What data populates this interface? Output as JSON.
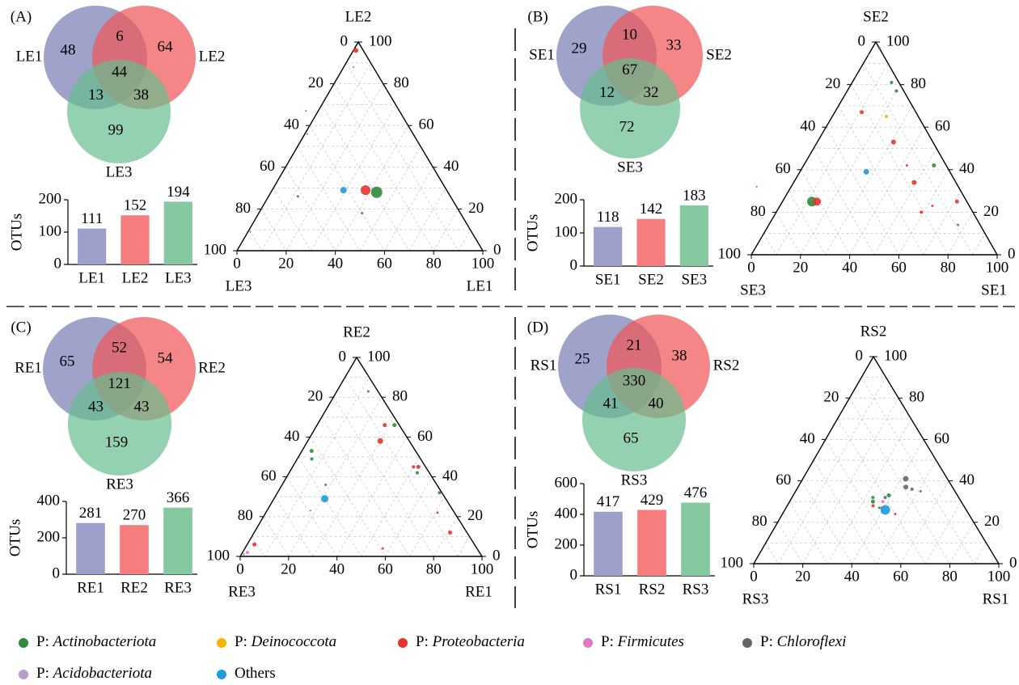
{
  "colors": {
    "set1": "#8e92c0",
    "set2": "#f0575a",
    "set3": "#66be8e",
    "bar1": "#9da0cb",
    "bar2": "#f57d7d",
    "bar3": "#86c9a0",
    "grid": "#c9c9c9",
    "separator": "#000000"
  },
  "legend": [
    {
      "prefix": "P: ",
      "name": "Actinobacteriota",
      "italic": true,
      "color": "#2e8b3a"
    },
    {
      "prefix": "P: ",
      "name": "Deinococcota",
      "italic": true,
      "color": "#f5b400"
    },
    {
      "prefix": "P: ",
      "name": "Proteobacteria",
      "italic": true,
      "color": "#e8332b"
    },
    {
      "prefix": "P: ",
      "name": "Firmicutes",
      "italic": true,
      "color": "#e377c2"
    },
    {
      "prefix": "P: ",
      "name": "Chloroflexi",
      "italic": true,
      "color": "#666666"
    },
    {
      "prefix": "P: ",
      "name": "Acidobacteriota",
      "italic": true,
      "color": "#b99ac8"
    },
    {
      "prefix": "",
      "name": "Others",
      "italic": false,
      "color": "#1e9be0"
    }
  ],
  "chart_data": [
    {
      "panel": "(A)",
      "venn": {
        "type": "venn",
        "sets": [
          "LE1",
          "LE2",
          "LE3"
        ],
        "only1": "48",
        "only2": "64",
        "only3": "99",
        "s12": "6",
        "s13": "13",
        "s23": "38",
        "s123": "44"
      },
      "bar": {
        "type": "bar",
        "ylabel": "OTUs",
        "categories": [
          "LE1",
          "LE2",
          "LE3"
        ],
        "values": [
          111,
          152,
          194
        ],
        "ylim": [
          0,
          200
        ],
        "yticks": [
          0,
          100,
          200
        ]
      },
      "ternary": {
        "type": "scatter",
        "axes": {
          "top": "LE2",
          "left": "LE3",
          "right": "LE1"
        },
        "ticks": [
          0,
          20,
          40,
          60,
          80,
          100
        ],
        "points": [
          {
            "a": 3,
            "b": 96,
            "c": 1,
            "color": "#e8332b",
            "r": 3
          },
          {
            "a": 8,
            "b": 88,
            "c": 4,
            "color": "#e8332b",
            "r": 1
          },
          {
            "a": 29,
            "b": 28,
            "c": 43,
            "color": "#2e8b3a",
            "r": 7
          },
          {
            "a": 33,
            "b": 29,
            "c": 38,
            "color": "#e8332b",
            "r": 6
          },
          {
            "a": 42,
            "b": 29,
            "c": 29,
            "color": "#1e9be0",
            "r": 4
          },
          {
            "a": 62,
            "b": 26,
            "c": 12,
            "color": "#2e8b3a",
            "r": 1.5
          },
          {
            "a": 40,
            "b": 18,
            "c": 42,
            "color": "#e8332b",
            "r": 1.5
          },
          {
            "a": 38,
            "b": 67,
            "c": -5,
            "color": "#e8332b",
            "r": 1
          },
          {
            "a": 43,
            "b": 56,
            "c": 1,
            "color": "#e8332b",
            "r": 1
          },
          {
            "a": 90,
            "b": 9,
            "c": 1,
            "color": "#e8332b",
            "r": 1
          }
        ]
      }
    },
    {
      "panel": "(B)",
      "venn": {
        "type": "venn",
        "sets": [
          "SE1",
          "SE2",
          "SE3"
        ],
        "only1": "29",
        "only2": "33",
        "only3": "72",
        "s12": "10",
        "s13": "12",
        "s23": "32",
        "s123": "67"
      },
      "bar": {
        "type": "bar",
        "ylabel": "OTUs",
        "categories": [
          "SE1",
          "SE2",
          "SE3"
        ],
        "values": [
          118,
          142,
          183
        ],
        "ylim": [
          0,
          200
        ],
        "yticks": [
          0,
          100,
          200
        ]
      },
      "ternary": {
        "type": "scatter",
        "axes": {
          "top": "SE2",
          "left": "SE3",
          "right": "SE1"
        },
        "ticks": [
          0,
          20,
          40,
          60,
          80,
          100
        ],
        "points": [
          {
            "a": 0,
            "b": 97,
            "c": 3,
            "color": "#2e8b3a",
            "r": 1.5
          },
          {
            "a": 6,
            "b": 94,
            "c": 0,
            "color": "#e8332b",
            "r": 1
          },
          {
            "a": 3,
            "b": 81,
            "c": 16,
            "color": "#2e8b3a",
            "r": 2
          },
          {
            "a": 3,
            "b": 77,
            "c": 20,
            "color": "#2e8b3a",
            "r": 2
          },
          {
            "a": 22,
            "b": 67,
            "c": 11,
            "color": "#e8332b",
            "r": 2.5
          },
          {
            "a": 13,
            "b": 65,
            "c": 22,
            "color": "#f5b400",
            "r": 2
          },
          {
            "a": 16,
            "b": 53,
            "c": 31,
            "color": "#e8332b",
            "r": 3
          },
          {
            "a": 16,
            "b": 42,
            "c": 42,
            "color": "#e8332b",
            "r": 1.5
          },
          {
            "a": 5,
            "b": 42,
            "c": 53,
            "color": "#2e8b3a",
            "r": 2.5
          },
          {
            "a": 34,
            "b": 39,
            "c": 27,
            "color": "#1e9be0",
            "r": 3.5
          },
          {
            "a": 17,
            "b": 34,
            "c": 49,
            "color": "#e8332b",
            "r": 3
          },
          {
            "a": 4,
            "b": 25,
            "c": 71,
            "color": "#e8332b",
            "r": 2.5
          },
          {
            "a": 21,
            "b": 20,
            "c": 59,
            "color": "#e8332b",
            "r": 2
          },
          {
            "a": 15,
            "b": 23,
            "c": 62,
            "color": "#e8332b",
            "r": 1.5
          },
          {
            "a": 9,
            "b": 14,
            "c": 77,
            "color": "#2e8b3a",
            "r": 1.5
          },
          {
            "a": 63,
            "b": 25,
            "c": 12,
            "color": "#2e8b3a",
            "r": 6
          },
          {
            "a": 61,
            "b": 25,
            "c": 14,
            "color": "#e8332b",
            "r": 5
          },
          {
            "a": 82,
            "b": 32,
            "c": -14,
            "color": "#e8332b",
            "r": 1
          }
        ]
      }
    },
    {
      "panel": "(C)",
      "venn": {
        "type": "venn",
        "sets": [
          "RE1",
          "RE2",
          "RE3"
        ],
        "only1": "65",
        "only2": "54",
        "only3": "159",
        "s12": "52",
        "s13": "43",
        "s23": "43",
        "s123": "121"
      },
      "bar": {
        "type": "bar",
        "ylabel": "OTUs",
        "categories": [
          "RE1",
          "RE2",
          "RE3"
        ],
        "values": [
          281,
          270,
          366
        ],
        "ylim": [
          0,
          400
        ],
        "yticks": [
          0,
          200,
          400
        ]
      },
      "ternary": {
        "type": "scatter",
        "axes": {
          "top": "RE2",
          "left": "RE3",
          "right": "RE1"
        },
        "ticks": [
          0,
          20,
          40,
          60,
          80,
          100
        ],
        "points": [
          {
            "a": 4,
            "b": 83,
            "c": 13,
            "color": "#2e8b3a",
            "r": 1.5
          },
          {
            "a": 2,
            "b": 66,
            "c": 32,
            "color": "#2e8b3a",
            "r": 2.5
          },
          {
            "a": 6,
            "b": 66,
            "c": 28,
            "color": "#e8332b",
            "r": 2.5
          },
          {
            "a": 12,
            "b": 58,
            "c": 30,
            "color": "#e8332b",
            "r": 3.5
          },
          {
            "a": 3,
            "b": 45,
            "c": 52,
            "color": "#e8332b",
            "r": 2.5
          },
          {
            "a": 5,
            "b": 45,
            "c": 50,
            "color": "#e8332b",
            "r": 2
          },
          {
            "a": 5,
            "b": 42,
            "c": 53,
            "color": "#2e8b3a",
            "r": 2
          },
          {
            "a": 1,
            "b": 32,
            "c": 67,
            "color": "#2e8b3a",
            "r": 2
          },
          {
            "a": 7,
            "b": 22,
            "c": 71,
            "color": "#e8332b",
            "r": 1.5
          },
          {
            "a": 7,
            "b": 12,
            "c": 81,
            "color": "#e8332b",
            "r": 2.5
          },
          {
            "a": 43,
            "b": 53,
            "c": 4,
            "color": "#2e8b3a",
            "r": 2.5
          },
          {
            "a": 45,
            "b": 49,
            "c": 6,
            "color": "#2e8b3a",
            "r": 2
          },
          {
            "a": 46,
            "b": 36,
            "c": 18,
            "color": "#2e8b3a",
            "r": 1.5
          },
          {
            "a": 50,
            "b": 29,
            "c": 21,
            "color": "#1e9be0",
            "r": 4.5
          },
          {
            "a": 59,
            "b": 23,
            "c": 18,
            "color": "#2e8b3a",
            "r": 1
          },
          {
            "a": 39,
            "b": 4,
            "c": 57,
            "color": "#e8332b",
            "r": 1.5
          },
          {
            "a": 91,
            "b": 6,
            "c": 3,
            "color": "#e8332b",
            "r": 2.5
          },
          {
            "a": 96,
            "b": 2,
            "c": 2,
            "color": "#e377c2",
            "r": 2
          },
          {
            "a": 98,
            "b": 1,
            "c": 1,
            "color": "#b99ac8",
            "r": 1.5
          }
        ]
      }
    },
    {
      "panel": "(D)",
      "venn": {
        "type": "venn",
        "sets": [
          "RS1",
          "RS2",
          "RS3"
        ],
        "only1": "25",
        "only2": "38",
        "only3": "65",
        "s12": "21",
        "s13": "41",
        "s23": "40",
        "s123": "330"
      },
      "bar": {
        "type": "bar",
        "ylabel": "OTUs",
        "categories": [
          "RS1",
          "RS2",
          "RS3"
        ],
        "values": [
          417,
          429,
          476
        ],
        "ylim": [
          0,
          600
        ],
        "yticks": [
          0,
          200,
          400,
          600
        ]
      },
      "ternary": {
        "type": "scatter",
        "axes": {
          "top": "RS2",
          "left": "RS3",
          "right": "RS1"
        },
        "ticks": [
          0,
          20,
          40,
          60,
          80,
          100
        ],
        "points": [
          {
            "a": 17,
            "b": 41,
            "c": 42,
            "color": "#666666",
            "r": 3.5
          },
          {
            "a": 19,
            "b": 37,
            "c": 44,
            "color": "#666666",
            "r": 3
          },
          {
            "a": 17,
            "b": 36,
            "c": 47,
            "color": "#666666",
            "r": 2
          },
          {
            "a": 14,
            "b": 35,
            "c": 51,
            "color": "#666666",
            "r": 1.5
          },
          {
            "a": 28,
            "b": 33,
            "c": 39,
            "color": "#2e8b3a",
            "r": 2.5
          },
          {
            "a": 30,
            "b": 32,
            "c": 38,
            "color": "#666666",
            "r": 2
          },
          {
            "a": 32,
            "b": 30,
            "c": 38,
            "color": "#e377c2",
            "r": 2
          },
          {
            "a": 35,
            "b": 32,
            "c": 33,
            "color": "#2e8b3a",
            "r": 2
          },
          {
            "a": 36,
            "b": 30,
            "c": 34,
            "color": "#2e8b3a",
            "r": 2.5
          },
          {
            "a": 37,
            "b": 28,
            "c": 35,
            "color": "#e8332b",
            "r": 2
          },
          {
            "a": 34,
            "b": 27,
            "c": 39,
            "color": "#e8332b",
            "r": 1.5
          },
          {
            "a": 35,
            "b": 27,
            "c": 38,
            "color": "#2e8b3a",
            "r": 1.5
          },
          {
            "a": 34,
            "b": 26,
            "c": 40,
            "color": "#b99ac8",
            "r": 2
          },
          {
            "a": 33,
            "b": 26,
            "c": 41,
            "color": "#1e9be0",
            "r": 6
          },
          {
            "a": 30,
            "b": 24,
            "c": 46,
            "color": "#e8332b",
            "r": 1.5
          }
        ]
      }
    }
  ]
}
